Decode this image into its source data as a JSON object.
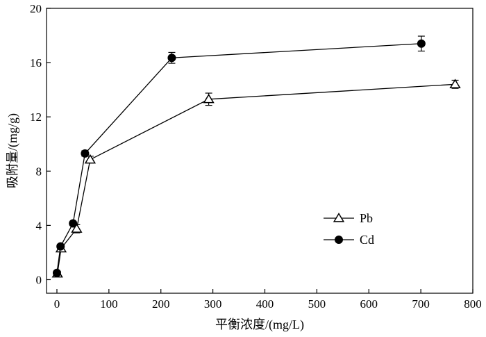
{
  "chart_data": {
    "type": "line",
    "title": "",
    "xlabel": "平衡浓度/(mg/L)",
    "ylabel": "吸附量/(mg/g)",
    "xlim": [
      -20,
      800
    ],
    "ylim": [
      -1,
      20
    ],
    "x_ticks": [
      0,
      100,
      200,
      300,
      400,
      500,
      600,
      700,
      800
    ],
    "y_ticks": [
      0,
      4,
      8,
      12,
      16,
      20
    ],
    "grid": false,
    "legend_position": "lower-right",
    "series": [
      {
        "name": "Pb",
        "marker": "open-triangle",
        "color": "#000000",
        "points": [
          {
            "x": 1,
            "y": 0.45,
            "err": 0.15
          },
          {
            "x": 8,
            "y": 2.3,
            "err": 0.2
          },
          {
            "x": 38,
            "y": 3.75,
            "err": 0.3
          },
          {
            "x": 64,
            "y": 8.85,
            "err": 0.25
          },
          {
            "x": 292,
            "y": 13.3,
            "err": 0.45
          },
          {
            "x": 766,
            "y": 14.4,
            "err": 0.3
          }
        ]
      },
      {
        "name": "Cd",
        "marker": "filled-circle",
        "color": "#000000",
        "points": [
          {
            "x": 0,
            "y": 0.5,
            "err": 0.1
          },
          {
            "x": 7,
            "y": 2.45,
            "err": 0.15
          },
          {
            "x": 31,
            "y": 4.15,
            "err": 0.15
          },
          {
            "x": 54,
            "y": 9.3,
            "err": 0.2
          },
          {
            "x": 221,
            "y": 16.35,
            "err": 0.4
          },
          {
            "x": 701,
            "y": 17.4,
            "err": 0.55
          }
        ]
      }
    ]
  }
}
